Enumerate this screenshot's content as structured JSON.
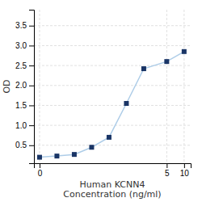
{
  "chart_data": {
    "type": "line",
    "x_label": "Human KCNN4\nConcentration (ng/ml)",
    "y_label": "OD",
    "x": [
      0.0313,
      0.0625,
      0.125,
      0.25,
      0.5,
      1,
      2,
      5,
      10
    ],
    "series": [
      {
        "values": [
          0.2,
          0.23,
          0.27,
          0.45,
          0.7,
          1.55,
          2.42,
          2.6,
          2.85
        ],
        "color": "#aecde8",
        "colors": [
          "#1a3566",
          "#1a3566",
          "#1a3566",
          "#1a3566",
          "#1a3566",
          "#1a3566",
          "#1a3566",
          "#1a3566",
          "#1a3566"
        ],
        "marker": "square"
      }
    ],
    "log": "x",
    "xlim": [
      0.025,
      13
    ],
    "xticks": [
      {
        "value": 0.0313,
        "label": "0"
      },
      5,
      10
    ],
    "ylim": [
      0.05,
      3.9
    ],
    "yticks": [
      0.5,
      {
        "value": 1.0,
        "label": "1.0"
      },
      1.5,
      {
        "value": 2.0,
        "label": "2.0"
      },
      2.5,
      {
        "value": 3.0,
        "label": "3.0"
      },
      3.5
    ],
    "grid": true
  }
}
